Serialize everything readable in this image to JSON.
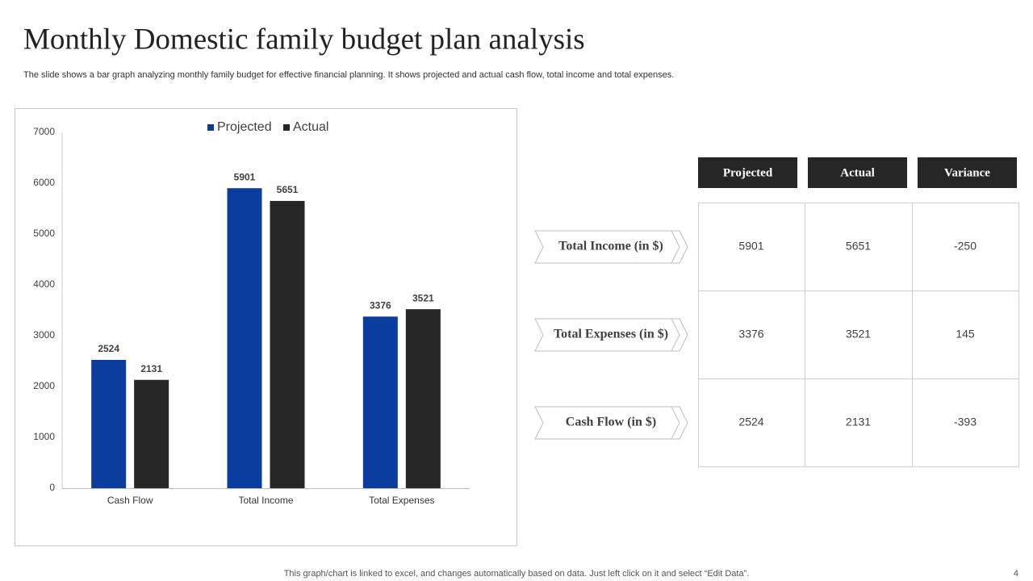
{
  "header": {
    "title": "Monthly Domestic family budget plan analysis",
    "subtitle": "The slide shows a bar graph analyzing monthly family budget for effective financial planning. It shows projected and actual cash flow, total income and total expenses."
  },
  "chart_data": {
    "type": "bar",
    "categories": [
      "Cash Flow",
      "Total Income",
      "Total Expenses"
    ],
    "series": [
      {
        "name": "Projected",
        "color": "#0a3d9e",
        "values": [
          2524,
          5901,
          3376
        ]
      },
      {
        "name": "Actual",
        "color": "#262626",
        "values": [
          2131,
          5651,
          3521
        ]
      }
    ],
    "ylim": [
      0,
      7000
    ],
    "yticks": [
      0,
      1000,
      2000,
      3000,
      4000,
      5000,
      6000,
      7000
    ],
    "legend": "top",
    "grid": false
  },
  "table": {
    "columns": [
      "Projected",
      "Actual",
      "Variance"
    ],
    "rows": [
      {
        "label": "Total Income (in $)",
        "values": [
          5901,
          5651,
          -250
        ]
      },
      {
        "label": "Total Expenses (in $)",
        "values": [
          3376,
          3521,
          145
        ]
      },
      {
        "label": "Cash Flow (in $)",
        "values": [
          2524,
          2131,
          -393
        ]
      }
    ]
  },
  "footer": {
    "note": "This graph/chart is linked to excel,  and changes automatically based on data. Just left click on it and select “Edit Data”.",
    "page": 4
  }
}
